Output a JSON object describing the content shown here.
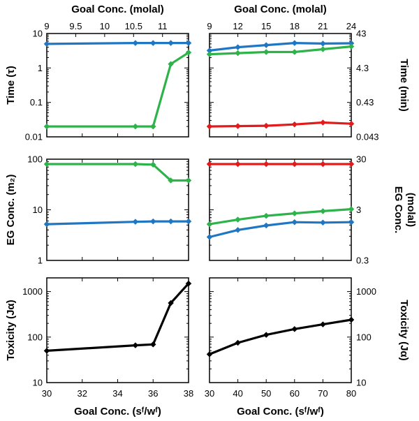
{
  "colors": {
    "blue": "#1f77c4",
    "green": "#2eb34a",
    "red": "#e31a1c",
    "black": "#000000"
  },
  "chart_data": [
    {
      "id": "time-left",
      "type": "line",
      "yscale": "log",
      "xlim": [
        30,
        38
      ],
      "ylim": [
        0.01,
        10
      ],
      "yticks": [
        "0.01",
        "0.1",
        "1",
        "10"
      ],
      "ylabel": "Time (τ)",
      "top_axis": {
        "label": "Goal Conc. (molal)",
        "ticks": [
          "9",
          "9.5",
          "10",
          "10.5",
          "11"
        ],
        "values": [
          9,
          9.5,
          10,
          10.5,
          11
        ],
        "lim": [
          9,
          11.45
        ]
      },
      "series": [
        {
          "name": "blue",
          "color": "blue",
          "x": [
            30,
            35,
            36,
            37,
            38
          ],
          "y": [
            5.0,
            5.3,
            5.3,
            5.3,
            5.3
          ]
        },
        {
          "name": "green",
          "color": "green",
          "x": [
            30,
            35,
            36,
            37,
            38
          ],
          "y": [
            0.02,
            0.02,
            0.02,
            1.3,
            2.8
          ]
        }
      ]
    },
    {
      "id": "time-right",
      "type": "line",
      "yscale": "log",
      "xlim": [
        30,
        80
      ],
      "ylim": [
        0.01,
        10
      ],
      "ylabel_right": "Time (min)",
      "right_ticks": [
        "43",
        "4.3",
        "0.43",
        "0.043"
      ],
      "right_tick_pos": [
        10,
        1,
        0.1,
        0.01
      ],
      "top_axis": {
        "label": "Goal Conc. (molal)",
        "ticks": [
          "9",
          "12",
          "15",
          "18",
          "21",
          "24"
        ],
        "values": [
          9,
          12,
          15,
          18,
          21,
          24
        ],
        "lim": [
          9,
          24
        ]
      },
      "series": [
        {
          "name": "blue",
          "color": "blue",
          "x": [
            30,
            40,
            50,
            60,
            70,
            80
          ],
          "y": [
            3.2,
            4.0,
            4.6,
            5.3,
            5.1,
            5.2
          ]
        },
        {
          "name": "green",
          "color": "green",
          "x": [
            30,
            40,
            50,
            60,
            70,
            80
          ],
          "y": [
            2.5,
            2.7,
            2.9,
            2.9,
            3.5,
            4.2
          ]
        },
        {
          "name": "red",
          "color": "red",
          "x": [
            30,
            40,
            50,
            60,
            70,
            80
          ],
          "y": [
            0.02,
            0.0205,
            0.021,
            0.023,
            0.026,
            0.024
          ]
        }
      ]
    },
    {
      "id": "eg-left",
      "type": "line",
      "yscale": "log",
      "xlim": [
        30,
        38
      ],
      "ylim": [
        1,
        100
      ],
      "yticks": [
        "1",
        "10",
        "100"
      ],
      "ylabel": "EG Conc. (m₂)",
      "series": [
        {
          "name": "green",
          "color": "green",
          "x": [
            30,
            35,
            36,
            37,
            38
          ],
          "y": [
            80,
            80,
            78,
            38,
            38
          ]
        },
        {
          "name": "blue",
          "color": "blue",
          "x": [
            30,
            35,
            36,
            37,
            38
          ],
          "y": [
            5.2,
            5.8,
            5.9,
            5.9,
            5.9
          ]
        }
      ]
    },
    {
      "id": "eg-right",
      "type": "line",
      "yscale": "log",
      "xlim": [
        30,
        80
      ],
      "ylim": [
        1,
        100
      ],
      "ylabel_right": "EG Conc.",
      "ylabel_right2": "(molal)",
      "right_ticks": [
        "30",
        "3",
        "0.3"
      ],
      "right_tick_pos": [
        100,
        10,
        1
      ],
      "series": [
        {
          "name": "red",
          "color": "red",
          "x": [
            30,
            40,
            50,
            60,
            70,
            80
          ],
          "y": [
            80,
            80,
            80,
            80,
            80,
            80
          ]
        },
        {
          "name": "green",
          "color": "green",
          "x": [
            30,
            40,
            50,
            60,
            70,
            80
          ],
          "y": [
            5.2,
            6.4,
            7.6,
            8.5,
            9.4,
            10.3
          ]
        },
        {
          "name": "blue",
          "color": "blue",
          "x": [
            30,
            40,
            50,
            60,
            70,
            80
          ],
          "y": [
            2.9,
            4.0,
            4.9,
            5.7,
            5.6,
            5.7
          ]
        }
      ]
    },
    {
      "id": "tox-left",
      "type": "line",
      "yscale": "log",
      "xlim": [
        30,
        38
      ],
      "ylim": [
        10,
        2000
      ],
      "yticks": [
        "10",
        "100",
        "1000"
      ],
      "ylabel": "Toxicity (Jα)",
      "xticks": [
        "30",
        "32",
        "34",
        "36",
        "38"
      ],
      "xlabel": "Goal Conc. (sᶠ/wᶠ)",
      "series": [
        {
          "name": "black",
          "color": "black",
          "x": [
            30,
            35,
            36,
            37,
            38
          ],
          "y": [
            50,
            66,
            69,
            560,
            1500
          ]
        }
      ]
    },
    {
      "id": "tox-right",
      "type": "line",
      "yscale": "log",
      "xlim": [
        30,
        80
      ],
      "ylim": [
        10,
        2000
      ],
      "ylabel_right": "Toxicity (Jα)",
      "right_ticks": [
        "1000",
        "100",
        "10"
      ],
      "right_tick_pos": [
        1000,
        100,
        10
      ],
      "xticks": [
        "30",
        "40",
        "50",
        "60",
        "70",
        "80"
      ],
      "xlabel": "Goal Conc. (sᶠ/wᶠ)",
      "series": [
        {
          "name": "black",
          "color": "black",
          "x": [
            30,
            40,
            50,
            60,
            70,
            80
          ],
          "y": [
            42,
            75,
            112,
            150,
            190,
            240
          ]
        }
      ]
    }
  ]
}
